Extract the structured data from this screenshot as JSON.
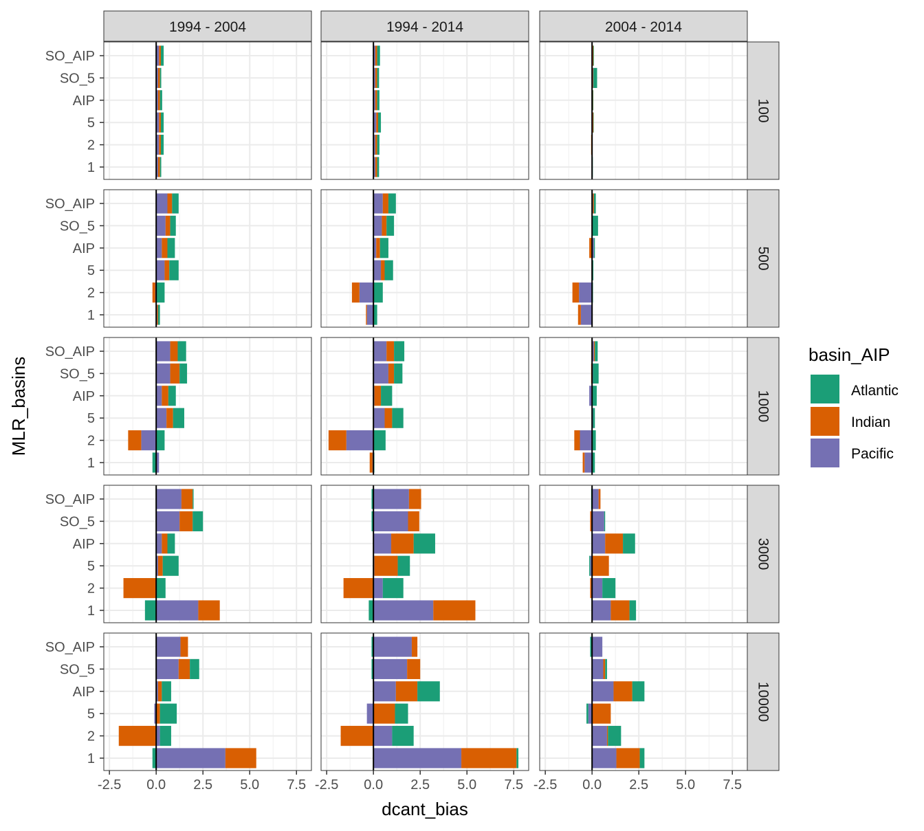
{
  "chart_data": {
    "type": "bar",
    "orientation": "horizontal",
    "stacked": true,
    "xlabel": "dcant_bias",
    "ylabel": "MLR_basins",
    "xlim": [
      -2.8,
      8.3
    ],
    "x_ticks": [
      -2.5,
      0.0,
      2.5,
      5.0,
      7.5
    ],
    "x_tick_labels": [
      "-2.5",
      "0.0",
      "2.5",
      "5.0",
      "7.5"
    ],
    "grid": true,
    "zero_line": true,
    "categories": [
      "SO_AIP",
      "SO_5",
      "AIP",
      "5",
      "2",
      "1"
    ],
    "col_facets": [
      "1994 - 2004",
      "1994 - 2014",
      "2004 - 2014"
    ],
    "row_facets": [
      "100",
      "500",
      "1000",
      "3000",
      "10000"
    ],
    "legend": {
      "title": "basin_AIP",
      "position": "right",
      "entries": [
        {
          "name": "Atlantic",
          "color": "#1b9e77"
        },
        {
          "name": "Indian",
          "color": "#d95f02"
        },
        {
          "name": "Pacific",
          "color": "#7570b3"
        }
      ]
    },
    "stack_order": [
      "Pacific",
      "Indian",
      "Atlantic"
    ],
    "panels": [
      [
        {
          "Pacific": [
            0.15,
            0.1,
            0.1,
            0.15,
            0.15,
            0.1
          ],
          "Indian": [
            0.1,
            0.1,
            0.1,
            0.1,
            0.1,
            0.1
          ],
          "Atlantic": [
            0.15,
            0.07,
            0.12,
            0.15,
            0.15,
            0.07
          ]
        },
        {
          "Pacific": [
            0.6,
            0.5,
            0.3,
            0.45,
            -0.05,
            0.05
          ],
          "Indian": [
            0.25,
            0.25,
            0.3,
            0.25,
            -0.15,
            0.05
          ],
          "Atlantic": [
            0.35,
            0.3,
            0.4,
            0.5,
            0.45,
            0.1
          ]
        },
        {
          "Pacific": [
            0.75,
            0.75,
            0.3,
            0.55,
            -0.8,
            0.15
          ],
          "Indian": [
            0.4,
            0.5,
            0.35,
            0.35,
            -0.7,
            0.0
          ],
          "Atlantic": [
            0.45,
            0.4,
            0.4,
            0.6,
            0.45,
            -0.2
          ]
        },
        {
          "Pacific": [
            1.35,
            1.25,
            0.3,
            0.1,
            0.0,
            2.25
          ],
          "Indian": [
            0.6,
            0.7,
            0.3,
            0.25,
            -1.75,
            1.15
          ],
          "Atlantic": [
            0.05,
            0.55,
            0.4,
            0.85,
            0.5,
            -0.6
          ]
        },
        {
          "Pacific": [
            1.3,
            1.2,
            0.1,
            -0.1,
            0.2,
            3.7
          ],
          "Indian": [
            0.4,
            0.6,
            0.2,
            0.2,
            -2.0,
            1.65
          ],
          "Atlantic": [
            0.0,
            0.5,
            0.5,
            0.9,
            0.6,
            -0.2
          ]
        }
      ],
      [
        {
          "Pacific": [
            0.1,
            0.1,
            0.1,
            0.15,
            0.1,
            0.1
          ],
          "Indian": [
            0.1,
            0.1,
            0.1,
            0.1,
            0.1,
            0.1
          ],
          "Atlantic": [
            0.15,
            0.1,
            0.12,
            0.15,
            0.12,
            0.1
          ]
        },
        {
          "Pacific": [
            0.5,
            0.45,
            0.15,
            0.4,
            -0.75,
            -0.35
          ],
          "Indian": [
            0.3,
            0.25,
            0.2,
            0.2,
            -0.4,
            -0.05
          ],
          "Atlantic": [
            0.4,
            0.4,
            0.45,
            0.45,
            0.5,
            0.2
          ]
        },
        {
          "Pacific": [
            0.7,
            0.8,
            0.05,
            0.6,
            -1.45,
            -0.05
          ],
          "Indian": [
            0.4,
            0.3,
            0.35,
            0.4,
            -0.95,
            -0.15
          ],
          "Atlantic": [
            0.55,
            0.45,
            0.6,
            0.6,
            0.65,
            0.05
          ]
        },
        {
          "Pacific": [
            1.9,
            1.85,
            0.95,
            0.05,
            0.5,
            3.2
          ],
          "Indian": [
            0.65,
            0.6,
            1.2,
            1.25,
            -1.6,
            2.25
          ],
          "Atlantic": [
            -0.1,
            -0.1,
            1.15,
            0.65,
            1.1,
            -0.25
          ]
        },
        {
          "Pacific": [
            2.05,
            1.8,
            1.2,
            -0.35,
            1.0,
            4.7
          ],
          "Indian": [
            0.3,
            0.7,
            1.15,
            1.15,
            -1.75,
            2.95
          ],
          "Atlantic": [
            -0.1,
            -0.1,
            1.2,
            0.7,
            1.15,
            0.1
          ]
        }
      ],
      [
        {
          "Pacific": [
            0.02,
            0.05,
            0.02,
            0.02,
            0.0,
            0.02
          ],
          "Indian": [
            0.05,
            0.02,
            0.03,
            0.05,
            -0.05,
            0.0
          ],
          "Atlantic": [
            0.03,
            0.2,
            0.02,
            0.02,
            0.02,
            0.02
          ]
        },
        {
          "Pacific": [
            0.05,
            0.02,
            0.1,
            0.02,
            -0.7,
            -0.6
          ],
          "Indian": [
            0.05,
            0.0,
            -0.15,
            0.0,
            -0.35,
            -0.15
          ],
          "Atlantic": [
            0.1,
            0.3,
            0.05,
            0.05,
            0.05,
            0.02
          ]
        },
        {
          "Pacific": [
            0.1,
            0.05,
            -0.15,
            0.05,
            -0.65,
            -0.4
          ],
          "Indian": [
            0.05,
            -0.05,
            0.0,
            0.0,
            -0.3,
            -0.1
          ],
          "Atlantic": [
            0.15,
            0.3,
            0.25,
            0.1,
            0.2,
            0.15
          ]
        },
        {
          "Pacific": [
            0.35,
            0.65,
            0.7,
            -0.1,
            0.55,
            1.0
          ],
          "Indian": [
            0.1,
            -0.1,
            0.95,
            0.9,
            -0.1,
            1.0
          ],
          "Atlantic": [
            -0.05,
            0.05,
            0.65,
            -0.05,
            0.7,
            0.35
          ]
        },
        {
          "Pacific": [
            0.55,
            0.6,
            1.15,
            -0.2,
            0.8,
            1.3
          ],
          "Indian": [
            0.0,
            0.1,
            1.0,
            1.0,
            0.05,
            1.25
          ],
          "Atlantic": [
            -0.1,
            0.1,
            0.65,
            -0.1,
            0.7,
            0.25
          ]
        }
      ]
    ]
  }
}
